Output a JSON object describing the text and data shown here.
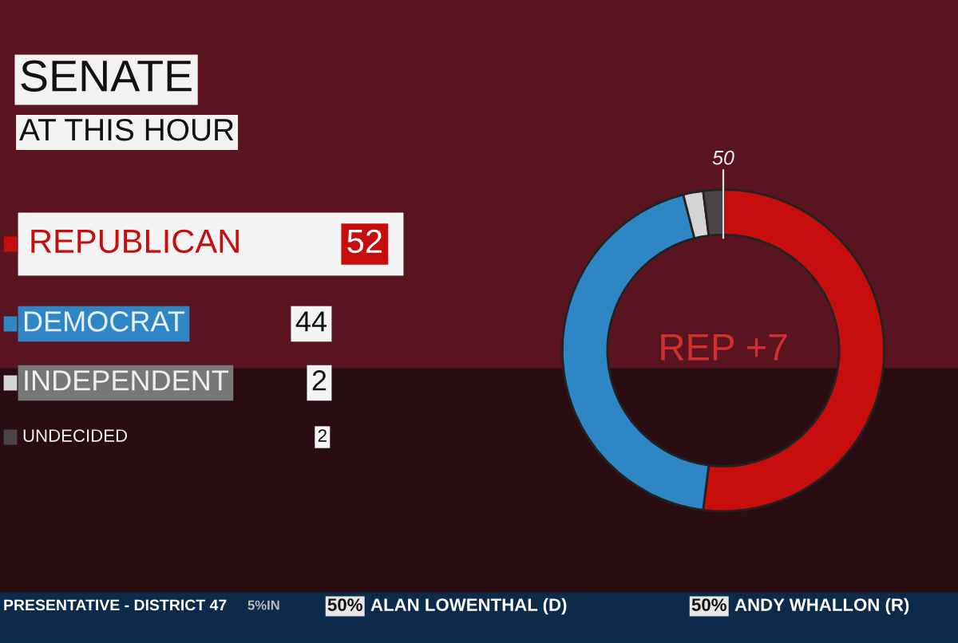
{
  "chart_data": {
    "type": "donut",
    "title": "SENATE",
    "subtitle": "AT THIS HOUR",
    "categories": [
      "REPUBLICAN",
      "DEMOCRAT",
      "INDEPENDENT",
      "UNDECIDED"
    ],
    "values": [
      52,
      44,
      2,
      2
    ],
    "colors": [
      "#c80d0d",
      "#2f86c4",
      "#d5d5d5",
      "#4a4448"
    ],
    "data_labels": true,
    "legend": "left",
    "annotations": [
      "50",
      "REP +7",
      "PRESENTATIVE - DISTRICT 47",
      "5%IN",
      "50%",
      "ALAN LOWENTHAL (D)",
      "50%",
      "ANDY WHALLON (R)"
    ]
  }
}
